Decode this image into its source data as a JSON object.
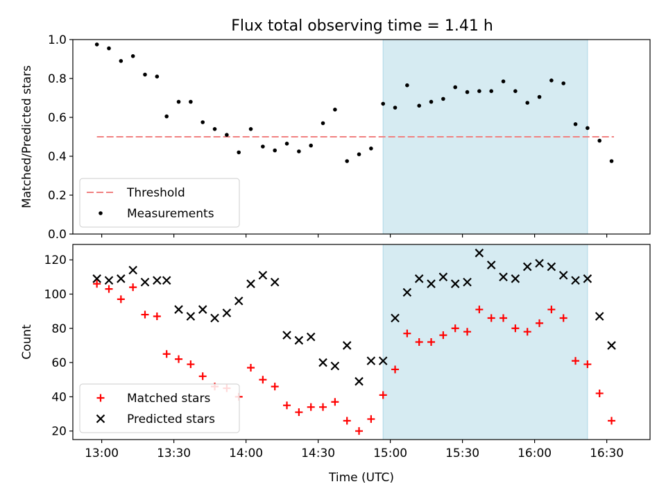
{
  "figure_title": "Flux total observing time = 1.41 h",
  "chart_data": [
    {
      "type": "scatter",
      "title": "Flux total observing time = 1.41 h",
      "xlabel": "",
      "ylabel": "Matched/Predicted stars",
      "ylim": [
        0,
        1.0
      ],
      "yticks": [
        "0.0",
        "0.2",
        "0.4",
        "0.6",
        "0.8",
        "1.0"
      ],
      "xticks": [
        "13:00",
        "13:30",
        "14:00",
        "14:30",
        "15:00",
        "15:30",
        "16:00",
        "16:30"
      ],
      "highlight_span": {
        "start": "14:57",
        "end": "16:22"
      },
      "legend": {
        "placement": "lower-left"
      },
      "threshold": {
        "name": "Threshold",
        "y": 0.5,
        "color": "#f08080",
        "style": "dashed",
        "x_start": "12:58",
        "x_end": "16:33"
      },
      "series": [
        {
          "name": "Measurements",
          "color": "#000000",
          "marker": "dot",
          "points": [
            [
              "12:58",
              0.975
            ],
            [
              "13:03",
              0.955
            ],
            [
              "13:08",
              0.89
            ],
            [
              "13:13",
              0.915
            ],
            [
              "13:18",
              0.82
            ],
            [
              "13:23",
              0.81
            ],
            [
              "13:27",
              0.605
            ],
            [
              "13:32",
              0.68
            ],
            [
              "13:37",
              0.68
            ],
            [
              "13:42",
              0.575
            ],
            [
              "13:47",
              0.54
            ],
            [
              "13:52",
              0.51
            ],
            [
              "13:57",
              0.42
            ],
            [
              "14:02",
              0.54
            ],
            [
              "14:07",
              0.45
            ],
            [
              "14:12",
              0.43
            ],
            [
              "14:17",
              0.465
            ],
            [
              "14:22",
              0.425
            ],
            [
              "14:27",
              0.455
            ],
            [
              "14:32",
              0.57
            ],
            [
              "14:37",
              0.64
            ],
            [
              "14:42",
              0.375
            ],
            [
              "14:47",
              0.41
            ],
            [
              "14:52",
              0.44
            ],
            [
              "14:57",
              0.67
            ],
            [
              "15:02",
              0.65
            ],
            [
              "15:07",
              0.765
            ],
            [
              "15:12",
              0.66
            ],
            [
              "15:17",
              0.68
            ],
            [
              "15:22",
              0.695
            ],
            [
              "15:27",
              0.755
            ],
            [
              "15:32",
              0.73
            ],
            [
              "15:37",
              0.735
            ],
            [
              "15:42",
              0.735
            ],
            [
              "15:47",
              0.785
            ],
            [
              "15:52",
              0.735
            ],
            [
              "15:57",
              0.675
            ],
            [
              "16:02",
              0.705
            ],
            [
              "16:07",
              0.79
            ],
            [
              "16:12",
              0.775
            ],
            [
              "16:17",
              0.565
            ],
            [
              "16:22",
              0.545
            ],
            [
              "16:27",
              0.48
            ],
            [
              "16:32",
              0.375
            ]
          ]
        }
      ]
    },
    {
      "type": "scatter",
      "title": "",
      "xlabel": "Time (UTC)",
      "ylabel": "Count",
      "ylim": [
        15,
        129
      ],
      "yticks": [
        "20",
        "40",
        "60",
        "80",
        "100",
        "120"
      ],
      "xticks": [
        "13:00",
        "13:30",
        "14:00",
        "14:30",
        "15:00",
        "15:30",
        "16:00",
        "16:30"
      ],
      "highlight_span": {
        "start": "14:57",
        "end": "16:22"
      },
      "legend": {
        "placement": "lower-left"
      },
      "series": [
        {
          "name": "Matched stars",
          "color": "#ff0000",
          "marker": "plus",
          "points": [
            [
              "12:58",
              106
            ],
            [
              "13:03",
              103
            ],
            [
              "13:08",
              97
            ],
            [
              "13:13",
              104
            ],
            [
              "13:18",
              88
            ],
            [
              "13:23",
              87
            ],
            [
              "13:27",
              65
            ],
            [
              "13:32",
              62
            ],
            [
              "13:37",
              59
            ],
            [
              "13:42",
              52
            ],
            [
              "13:47",
              46
            ],
            [
              "13:52",
              45
            ],
            [
              "13:57",
              40
            ],
            [
              "14:02",
              57
            ],
            [
              "14:07",
              50
            ],
            [
              "14:12",
              46
            ],
            [
              "14:17",
              35
            ],
            [
              "14:22",
              31
            ],
            [
              "14:27",
              34
            ],
            [
              "14:32",
              34
            ],
            [
              "14:37",
              37
            ],
            [
              "14:42",
              26
            ],
            [
              "14:47",
              20
            ],
            [
              "14:52",
              27
            ],
            [
              "14:57",
              41
            ],
            [
              "15:02",
              56
            ],
            [
              "15:07",
              77
            ],
            [
              "15:12",
              72
            ],
            [
              "15:17",
              72
            ],
            [
              "15:22",
              76
            ],
            [
              "15:27",
              80
            ],
            [
              "15:32",
              78
            ],
            [
              "15:37",
              91
            ],
            [
              "15:42",
              86
            ],
            [
              "15:47",
              86
            ],
            [
              "15:52",
              80
            ],
            [
              "15:57",
              78
            ],
            [
              "16:02",
              83
            ],
            [
              "16:07",
              91
            ],
            [
              "16:12",
              86
            ],
            [
              "16:17",
              61
            ],
            [
              "16:22",
              59
            ],
            [
              "16:27",
              42
            ],
            [
              "16:32",
              26
            ]
          ]
        },
        {
          "name": "Predicted stars",
          "color": "#000000",
          "marker": "cross",
          "points": [
            [
              "12:58",
              109
            ],
            [
              "13:03",
              108
            ],
            [
              "13:08",
              109
            ],
            [
              "13:13",
              114
            ],
            [
              "13:18",
              107
            ],
            [
              "13:23",
              108
            ],
            [
              "13:27",
              108
            ],
            [
              "13:32",
              91
            ],
            [
              "13:37",
              87
            ],
            [
              "13:42",
              91
            ],
            [
              "13:47",
              86
            ],
            [
              "13:52",
              89
            ],
            [
              "13:57",
              96
            ],
            [
              "14:02",
              106
            ],
            [
              "14:07",
              111
            ],
            [
              "14:12",
              107
            ],
            [
              "14:17",
              76
            ],
            [
              "14:22",
              73
            ],
            [
              "14:27",
              75
            ],
            [
              "14:32",
              60
            ],
            [
              "14:37",
              58
            ],
            [
              "14:42",
              70
            ],
            [
              "14:47",
              49
            ],
            [
              "14:52",
              61
            ],
            [
              "14:57",
              61
            ],
            [
              "15:02",
              86
            ],
            [
              "15:07",
              101
            ],
            [
              "15:12",
              109
            ],
            [
              "15:17",
              106
            ],
            [
              "15:22",
              110
            ],
            [
              "15:27",
              106
            ],
            [
              "15:32",
              107
            ],
            [
              "15:37",
              124
            ],
            [
              "15:42",
              117
            ],
            [
              "15:47",
              110
            ],
            [
              "15:52",
              109
            ],
            [
              "15:57",
              116
            ],
            [
              "16:02",
              118
            ],
            [
              "16:07",
              116
            ],
            [
              "16:12",
              111
            ],
            [
              "16:17",
              108
            ],
            [
              "16:22",
              109
            ],
            [
              "16:27",
              87
            ],
            [
              "16:32",
              70
            ]
          ]
        }
      ]
    }
  ]
}
